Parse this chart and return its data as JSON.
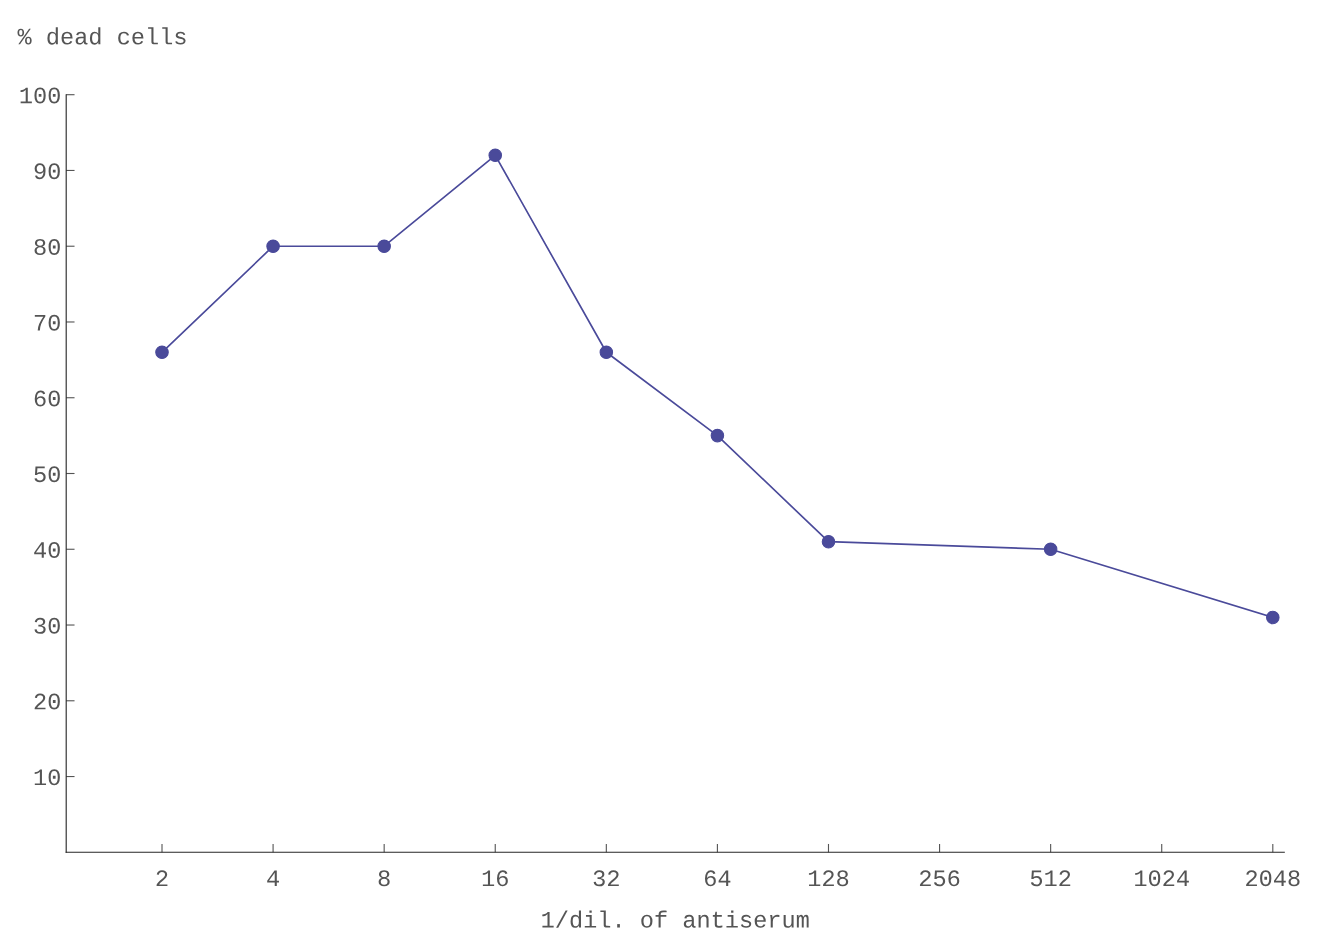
{
  "chart_data": {
    "type": "line",
    "ylabel": "% dead cells",
    "xlabel": "1/dil. of antiserum",
    "x": [
      2,
      4,
      8,
      16,
      32,
      64,
      128,
      512,
      2048
    ],
    "series": [
      {
        "color": "#4a4a9a",
        "values": [
          66,
          80,
          80,
          92,
          66,
          55,
          41,
          40,
          31
        ]
      }
    ],
    "log": "x",
    "xlim": [
      1.1,
      2200
    ],
    "xticks": [
      2,
      4,
      8,
      16,
      32,
      64,
      128,
      256,
      512,
      1024,
      2048
    ],
    "ylim": [
      0,
      100
    ],
    "yticks": [
      10,
      20,
      30,
      40,
      50,
      60,
      70,
      80,
      90,
      100
    ],
    "grid": false,
    "marker": "circle",
    "line_style": "solid"
  }
}
